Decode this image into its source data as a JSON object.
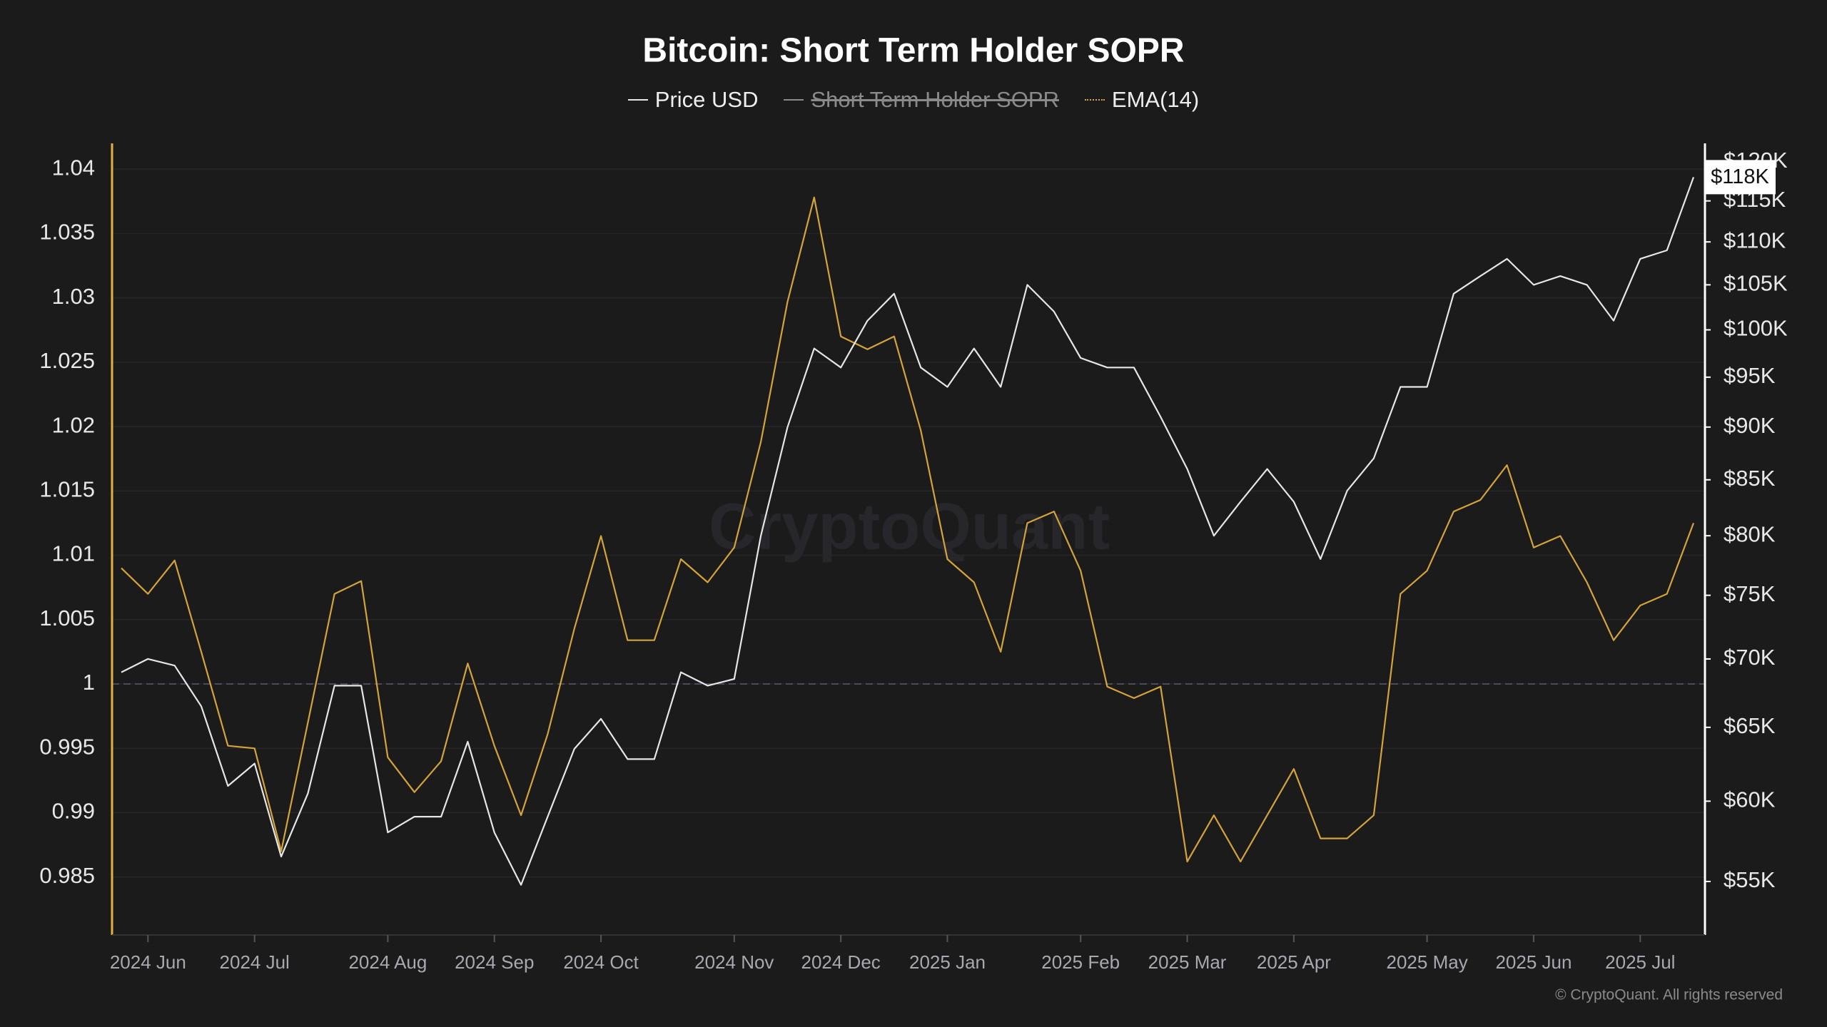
{
  "chart_data": {
    "type": "line",
    "title": "Bitcoin: Short Term Holder SOPR",
    "legend_position": "top",
    "watermark": "CryptoQuant",
    "footer": "© CryptoQuant. All rights reserved",
    "categories": [
      null,
      "2024 Jun",
      null,
      null,
      null,
      "2024 Jul",
      null,
      null,
      null,
      null,
      "2024 Aug",
      null,
      null,
      null,
      "2024 Sep",
      null,
      null,
      null,
      "2024 Oct",
      null,
      null,
      null,
      null,
      "2024 Nov",
      null,
      null,
      null,
      "2024 Dec",
      null,
      null,
      null,
      "2025 Jan",
      null,
      null,
      null,
      null,
      "2025 Feb",
      null,
      null,
      null,
      "2025 Mar",
      null,
      null,
      null,
      "2025 Apr",
      null,
      null,
      null,
      null,
      "2025 May",
      null,
      null,
      null,
      "2025 Jun",
      null,
      null,
      null,
      "2025 Jul",
      null,
      null
    ],
    "series": [
      {
        "name": "Price USD",
        "color": "#e6e6e6",
        "axis": "y2",
        "visible": true,
        "last_value_label": "$118K",
        "values": [
          69000,
          70000,
          69500,
          66500,
          61000,
          62500,
          56500,
          60500,
          68000,
          68000,
          58000,
          59000,
          59000,
          64000,
          58000,
          54800,
          59000,
          63500,
          65600,
          62800,
          62800,
          69000,
          68000,
          68500,
          80000,
          90000,
          98000,
          96000,
          101000,
          104000,
          96000,
          94000,
          98000,
          94000,
          105000,
          102000,
          97000,
          96000,
          96000,
          91000,
          86000,
          80000,
          83000,
          86000,
          83000,
          78000,
          84000,
          87000,
          94000,
          94000,
          104000,
          106000,
          108000,
          105000,
          106000,
          105000,
          101000,
          108000,
          109000,
          118000
        ]
      },
      {
        "name": "Short Term Holder SOPR",
        "color": "#8a8a8a",
        "visible": false,
        "values": [
          null,
          null,
          null,
          null,
          null,
          null,
          null,
          null,
          null,
          null,
          null,
          null,
          null,
          null,
          null,
          null,
          null,
          null,
          null,
          null,
          null,
          null,
          null,
          null,
          null,
          null,
          null,
          null,
          null,
          null,
          null,
          null,
          null,
          null,
          null,
          null,
          null,
          null,
          null,
          null,
          null,
          null,
          null,
          null,
          null,
          null,
          null,
          null,
          null,
          null,
          null,
          null,
          null,
          null,
          null,
          null,
          null,
          null,
          null,
          null
        ]
      },
      {
        "name": "EMA(14)",
        "color": "#d4a33b",
        "visible": true,
        "values": [
          1.009,
          1.007,
          1.0096,
          1.0025,
          0.9952,
          0.995,
          0.987,
          0.997,
          1.007,
          1.008,
          0.9943,
          0.9916,
          0.994,
          1.0016,
          0.9952,
          0.9898,
          0.9961,
          1.0043,
          1.0115,
          1.0034,
          1.0034,
          1.0097,
          1.0079,
          1.0106,
          1.0188,
          1.0297,
          1.0378,
          1.027,
          1.026,
          1.027,
          1.0197,
          1.0097,
          1.0079,
          1.0025,
          1.0125,
          1.0134,
          1.0088,
          0.9998,
          0.9989,
          0.9998,
          0.9862,
          0.9898,
          0.9862,
          0.9898,
          0.9934,
          0.988,
          0.988,
          0.9898,
          1.007,
          1.0088,
          1.0134,
          1.0143,
          1.017,
          1.0106,
          1.0115,
          1.0079,
          1.0034,
          1.0061,
          1.007,
          1.0125
        ]
      }
    ],
    "ylim": [
      0.9805,
      1.042
    ],
    "yticks": [
      0.985,
      0.99,
      0.995,
      1,
      1.005,
      1.01,
      1.015,
      1.02,
      1.025,
      1.03,
      1.035,
      1.04
    ],
    "y2lim": [
      51900,
      122400
    ],
    "y2log": true,
    "y2ticks": [
      {
        "value": 55000,
        "label": "$55K"
      },
      {
        "value": 60000,
        "label": "$60K"
      },
      {
        "value": 65000,
        "label": "$65K"
      },
      {
        "value": 70000,
        "label": "$70K"
      },
      {
        "value": 75000,
        "label": "$75K"
      },
      {
        "value": 80000,
        "label": "$80K"
      },
      {
        "value": 85000,
        "label": "$85K"
      },
      {
        "value": 90000,
        "label": "$90K"
      },
      {
        "value": 95000,
        "label": "$95K"
      },
      {
        "value": 100000,
        "label": "$100K"
      },
      {
        "value": 105000,
        "label": "$105K"
      },
      {
        "value": 110000,
        "label": "$110K"
      },
      {
        "value": 115000,
        "label": "$115K"
      },
      {
        "value": 120000,
        "label": "$120K"
      }
    ],
    "reference_line": 1,
    "grid": true
  }
}
